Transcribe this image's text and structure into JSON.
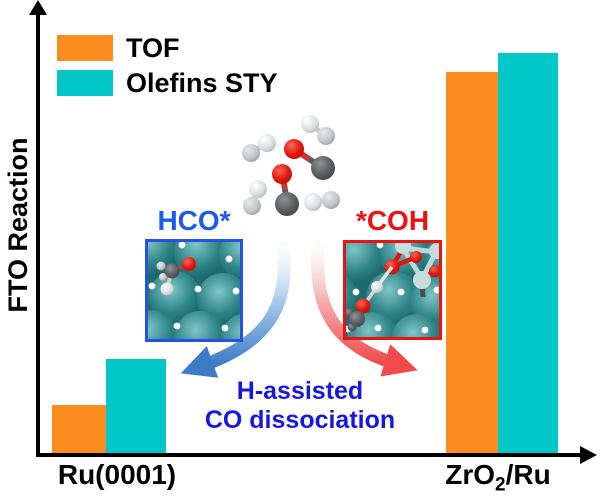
{
  "axes": {
    "y_label": "FTO Reaction",
    "axis_color": "#000000"
  },
  "legend": {
    "items": [
      {
        "label": "TOF",
        "color": "#FA8D1E"
      },
      {
        "label": "Olefins STY",
        "color": "#01C7C9"
      }
    ]
  },
  "chart_data": {
    "type": "bar",
    "title": "",
    "xlabel": "",
    "ylabel": "FTO Reaction",
    "categories": [
      "Ru(0001)",
      "ZrO2/Ru"
    ],
    "series": [
      {
        "name": "TOF",
        "color": "#FA8D1E",
        "values": [
          0.12,
          0.9525
        ]
      },
      {
        "name": "Olefins STY",
        "color": "#01C7C9",
        "values": [
          0.235,
          1.0
        ]
      }
    ],
    "ylim": [
      0,
      1.05
    ],
    "yticks": [],
    "legend_position": "upper-left",
    "grid": false,
    "note": "Qualitative schematic bar chart; y-axis has arrow but no numeric ticks. Values are relative heights (ZrO2/Ru Olefins STY = 1.0)."
  },
  "x_labels": {
    "left": "Ru(0001)",
    "right_base": "ZrO",
    "right_sub": "2",
    "right_rest": "/Ru"
  },
  "annotations": {
    "hco": {
      "text": "HCO*",
      "color": "#1B5CEC"
    },
    "coh": {
      "text": "*COH",
      "color": "#EC1212"
    },
    "mechanism_line1": "H-assisted",
    "mechanism_line2": "CO dissociation",
    "mechanism_color": "#1717DF",
    "blue_arrow_color": "#3C7CC6",
    "red_arrow_color": "#EF4B4B",
    "inset_blue_border": "#2750E6",
    "inset_red_border": "#E81414"
  }
}
